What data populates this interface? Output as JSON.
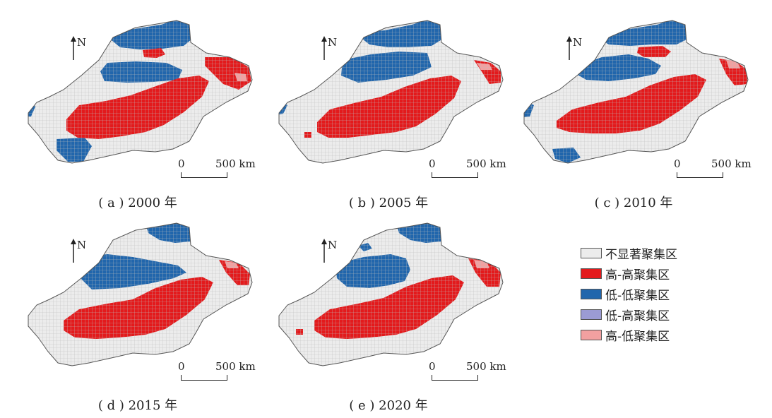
{
  "figure": {
    "panels": [
      {
        "id": "a",
        "caption_label": "( a )",
        "caption_year": "2000 年"
      },
      {
        "id": "b",
        "caption_label": "( b )",
        "caption_year": "2005 年"
      },
      {
        "id": "c",
        "caption_label": "( c )",
        "caption_year": "2010 年"
      },
      {
        "id": "d",
        "caption_label": "( d )",
        "caption_year": "2015 年"
      },
      {
        "id": "e",
        "caption_label": "( e )",
        "caption_year": "2020 年"
      }
    ],
    "north_label": "N",
    "scale": {
      "start_label": "0",
      "end_label": "500 km"
    }
  },
  "legend": {
    "items": [
      {
        "label": "不显著聚集区",
        "color": "#ececec"
      },
      {
        "label": "高-高聚集区",
        "color": "#e31a1c"
      },
      {
        "label": "低-低聚集区",
        "color": "#2166ac"
      },
      {
        "label": "低-高聚集区",
        "color": "#9b9bd4"
      },
      {
        "label": "高-低聚集区",
        "color": "#f2a0a0"
      }
    ]
  },
  "colors": {
    "outline": "#555555",
    "grid": "#bdbdbd"
  }
}
